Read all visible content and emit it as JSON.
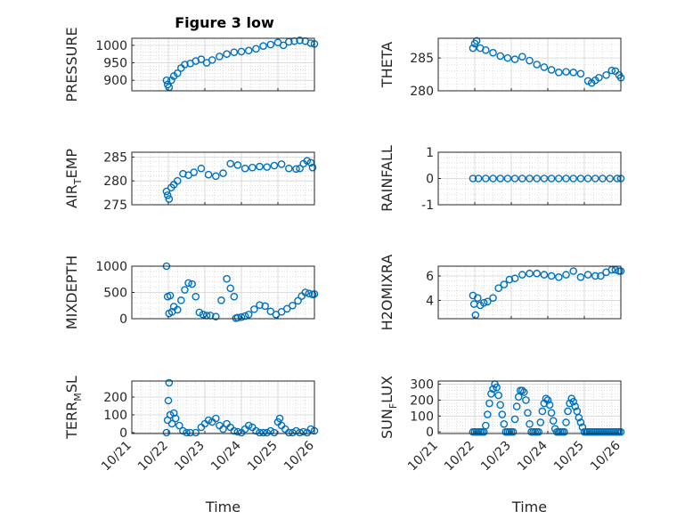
{
  "figure_title": "Figure 3 low",
  "marker_color": "#0072BD",
  "time_ticks": [
    "10/21",
    "10/22",
    "10/23",
    "10/24",
    "10/25",
    "10/26"
  ],
  "time_label": "Time",
  "chart_data": [
    {
      "type": "scatter",
      "ylabel": "PRESSURE",
      "xlim": [
        0,
        5
      ],
      "ylim": [
        870,
        1020
      ],
      "yticks": [
        900,
        950,
        1000
      ],
      "grid": true,
      "x": [
        0.95,
        0.98,
        1.02,
        1.08,
        1.15,
        1.25,
        1.35,
        1.45,
        1.6,
        1.75,
        1.9,
        2.05,
        2.2,
        2.4,
        2.6,
        2.8,
        3.0,
        3.2,
        3.4,
        3.6,
        3.8,
        4.0,
        4.15,
        4.3,
        4.45,
        4.6,
        4.75,
        4.9,
        5.0
      ],
      "y": [
        900,
        888,
        880,
        900,
        912,
        920,
        935,
        945,
        948,
        955,
        960,
        950,
        958,
        968,
        975,
        980,
        982,
        985,
        990,
        998,
        1002,
        1008,
        1000,
        1010,
        1012,
        1014,
        1012,
        1006,
        1004
      ]
    },
    {
      "type": "scatter",
      "ylabel": "THETA",
      "xlim": [
        0,
        5
      ],
      "ylim": [
        280,
        288
      ],
      "yticks": [
        280,
        285
      ],
      "grid": true,
      "x": [
        0.95,
        1.0,
        1.05,
        1.15,
        1.3,
        1.5,
        1.7,
        1.9,
        2.1,
        2.3,
        2.5,
        2.7,
        2.9,
        3.1,
        3.3,
        3.5,
        3.7,
        3.9,
        4.1,
        4.2,
        4.3,
        4.4,
        4.6,
        4.75,
        4.85,
        4.95,
        5.0
      ],
      "y": [
        286.5,
        287.2,
        287.6,
        286.5,
        286.2,
        285.8,
        285.3,
        285.0,
        284.8,
        285.2,
        284.6,
        284.0,
        283.6,
        283.2,
        282.8,
        282.9,
        282.8,
        282.6,
        281.5,
        281.2,
        281.6,
        282.0,
        282.4,
        283.1,
        283.0,
        282.4,
        282.0
      ]
    },
    {
      "type": "scatter",
      "ylabel": "AIR",
      "ylabel_sub": "T",
      "ylabel_rest": "EMP",
      "xlim": [
        0,
        5
      ],
      "ylim": [
        275,
        286
      ],
      "yticks": [
        275,
        280,
        285
      ],
      "grid": true,
      "x": [
        0.95,
        0.98,
        1.02,
        1.08,
        1.15,
        1.25,
        1.4,
        1.55,
        1.7,
        1.9,
        2.1,
        2.3,
        2.5,
        2.7,
        2.9,
        3.1,
        3.3,
        3.5,
        3.7,
        3.9,
        4.1,
        4.3,
        4.5,
        4.6,
        4.7,
        4.8,
        4.9,
        4.95
      ],
      "y": [
        277.8,
        277.0,
        276.2,
        278.6,
        279.2,
        280.0,
        281.5,
        281.2,
        281.8,
        282.6,
        281.3,
        281.0,
        281.6,
        283.6,
        283.3,
        282.6,
        282.8,
        283.0,
        282.9,
        283.2,
        283.5,
        282.6,
        282.5,
        282.6,
        283.6,
        284.2,
        283.8,
        282.8
      ]
    },
    {
      "type": "scatter",
      "ylabel": "RAINFALL",
      "xlim": [
        0,
        5
      ],
      "ylim": [
        -1,
        1
      ],
      "yticks": [
        -1,
        0,
        1
      ],
      "grid": true,
      "x": [
        0.95,
        1.1,
        1.3,
        1.5,
        1.7,
        1.9,
        2.1,
        2.3,
        2.5,
        2.7,
        2.9,
        3.1,
        3.3,
        3.5,
        3.7,
        3.9,
        4.1,
        4.3,
        4.5,
        4.7,
        4.9,
        5.0
      ],
      "y": [
        0,
        0,
        0,
        0,
        0,
        0,
        0,
        0,
        0,
        0,
        0,
        0,
        0,
        0,
        0,
        0,
        0,
        0,
        0,
        0,
        0,
        0
      ]
    },
    {
      "type": "scatter",
      "ylabel": "MIXDEPTH",
      "xlim": [
        0,
        5
      ],
      "ylim": [
        0,
        1000
      ],
      "yticks": [
        0,
        500,
        1000
      ],
      "grid": true,
      "x": [
        0.95,
        0.98,
        1.02,
        1.05,
        1.1,
        1.15,
        1.25,
        1.35,
        1.45,
        1.55,
        1.65,
        1.75,
        1.85,
        1.95,
        2.05,
        2.15,
        2.3,
        2.45,
        2.6,
        2.7,
        2.8,
        2.85,
        2.9,
        3.0,
        3.1,
        3.2,
        3.35,
        3.5,
        3.65,
        3.8,
        3.95,
        4.1,
        4.25,
        4.4,
        4.55,
        4.65,
        4.75,
        4.85,
        4.95,
        5.0
      ],
      "y": [
        1000,
        420,
        100,
        440,
        130,
        230,
        170,
        350,
        550,
        680,
        660,
        420,
        120,
        80,
        60,
        60,
        40,
        350,
        760,
        580,
        420,
        10,
        20,
        30,
        50,
        80,
        180,
        260,
        240,
        140,
        80,
        130,
        190,
        250,
        340,
        430,
        500,
        480,
        460,
        470
      ]
    },
    {
      "type": "scatter",
      "ylabel": "H2OMIXRA",
      "xlim": [
        0,
        5
      ],
      "ylim": [
        2.5,
        6.8
      ],
      "yticks": [
        4,
        6
      ],
      "grid": true,
      "x": [
        0.95,
        0.98,
        1.02,
        1.08,
        1.15,
        1.25,
        1.35,
        1.5,
        1.65,
        1.8,
        1.95,
        2.1,
        2.3,
        2.5,
        2.7,
        2.9,
        3.1,
        3.3,
        3.5,
        3.7,
        3.9,
        4.1,
        4.3,
        4.45,
        4.6,
        4.75,
        4.85,
        4.95,
        5.0
      ],
      "y": [
        4.4,
        3.7,
        2.8,
        4.2,
        3.6,
        3.8,
        3.9,
        4.2,
        5.0,
        5.3,
        5.7,
        5.8,
        6.1,
        6.2,
        6.2,
        6.1,
        6.0,
        5.9,
        6.1,
        6.4,
        5.9,
        6.1,
        6.0,
        6.0,
        6.3,
        6.5,
        6.5,
        6.4,
        6.4
      ]
    },
    {
      "type": "scatter",
      "ylabel": "TERR",
      "ylabel_sub": "M",
      "ylabel_rest": "SL",
      "xlim": [
        0,
        5
      ],
      "ylim": [
        -5,
        290
      ],
      "yticks": [
        0,
        100,
        200
      ],
      "grid": true,
      "x": [
        0.95,
        0.98,
        1.0,
        1.02,
        1.05,
        1.1,
        1.15,
        1.2,
        1.3,
        1.4,
        1.5,
        1.6,
        1.75,
        1.9,
        2.0,
        2.1,
        2.2,
        2.3,
        2.4,
        2.5,
        2.6,
        2.7,
        2.8,
        2.9,
        3.0,
        3.1,
        3.2,
        3.3,
        3.4,
        3.5,
        3.6,
        3.7,
        3.8,
        3.9,
        4.0,
        4.05,
        4.1,
        4.2,
        4.3,
        4.4,
        4.5,
        4.6,
        4.7,
        4.8,
        4.9,
        5.0
      ],
      "y": [
        0,
        70,
        180,
        280,
        100,
        50,
        110,
        80,
        40,
        10,
        0,
        0,
        0,
        30,
        50,
        70,
        60,
        80,
        40,
        20,
        50,
        30,
        10,
        5,
        0,
        20,
        40,
        30,
        10,
        0,
        0,
        0,
        10,
        0,
        60,
        80,
        40,
        20,
        0,
        0,
        10,
        0,
        5,
        0,
        20,
        10
      ]
    },
    {
      "type": "scatter",
      "ylabel": "SUN",
      "ylabel_sub": "F",
      "ylabel_rest": "LUX",
      "xlim": [
        0,
        5
      ],
      "ylim": [
        -10,
        320
      ],
      "yticks": [
        0,
        100,
        200,
        300
      ],
      "grid": true,
      "x": [
        0.95,
        1.0,
        1.05,
        1.1,
        1.15,
        1.2,
        1.25,
        1.3,
        1.35,
        1.4,
        1.45,
        1.5,
        1.55,
        1.6,
        1.65,
        1.7,
        1.75,
        1.8,
        1.85,
        1.9,
        1.95,
        2.0,
        2.05,
        2.1,
        2.15,
        2.2,
        2.25,
        2.3,
        2.35,
        2.4,
        2.45,
        2.5,
        2.55,
        2.6,
        2.65,
        2.7,
        2.75,
        2.8,
        2.85,
        2.9,
        2.95,
        3.0,
        3.05,
        3.1,
        3.15,
        3.2,
        3.25,
        3.3,
        3.35,
        3.4,
        3.45,
        3.5,
        3.55,
        3.6,
        3.65,
        3.7,
        3.75,
        3.8,
        3.85,
        3.9,
        3.95,
        4.0,
        4.05,
        4.1,
        4.15,
        4.2,
        4.25,
        4.3,
        4.35,
        4.4,
        4.45,
        4.5,
        4.55,
        4.6,
        4.65,
        4.7,
        4.75,
        4.8,
        4.85,
        4.9,
        4.95,
        5.0
      ],
      "y": [
        0,
        0,
        0,
        0,
        0,
        0,
        0,
        40,
        110,
        180,
        240,
        270,
        300,
        280,
        230,
        170,
        110,
        50,
        0,
        0,
        0,
        0,
        0,
        80,
        160,
        220,
        260,
        260,
        250,
        200,
        120,
        50,
        0,
        0,
        0,
        0,
        0,
        60,
        130,
        180,
        210,
        200,
        170,
        120,
        70,
        20,
        0,
        0,
        0,
        0,
        0,
        60,
        130,
        180,
        210,
        190,
        160,
        130,
        90,
        60,
        30,
        0,
        0,
        0,
        0,
        0,
        0,
        0,
        0,
        0,
        0,
        0,
        0,
        0,
        0,
        0,
        0,
        0,
        0,
        0,
        0,
        0
      ]
    }
  ]
}
